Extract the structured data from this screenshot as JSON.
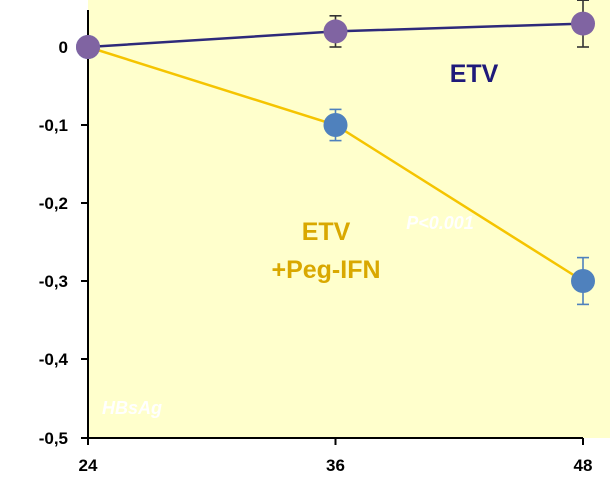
{
  "chart_data": {
    "type": "line",
    "x": [
      24,
      36,
      48
    ],
    "x_tick_labels": [
      "24",
      "36",
      "48"
    ],
    "y_ticks": [
      0,
      -0.1,
      -0.2,
      -0.3,
      -0.4,
      -0.5
    ],
    "y_tick_labels": [
      "0",
      "-0,1",
      "-0,2",
      "-0,3",
      "-0,4",
      "-0,5"
    ],
    "xlim": [
      24,
      48
    ],
    "ylim": [
      -0.5,
      0.05
    ],
    "grid": false,
    "background_color": "#FFFFCC",
    "series": [
      {
        "name": "ETV",
        "values": [
          0,
          0.02,
          0.03
        ],
        "error": [
          0,
          0.02,
          0.03
        ],
        "line_color": "#2E2A7A",
        "marker_color": "#8064A2"
      },
      {
        "name": "ETV +Peg-IFN",
        "values": [
          0,
          -0.1,
          -0.3
        ],
        "error": [
          0,
          0.02,
          0.03
        ],
        "line_color": "#F5C400",
        "marker_color": "#4F81BD"
      }
    ],
    "annotations": {
      "etv_label": "ETV",
      "peg_label_line1": "ETV",
      "peg_label_line2": "+Peg-IFN",
      "p_value": "P<0.001",
      "marker_name": "HBsAg"
    },
    "annotation_colors": {
      "etv": "#1F1A7A",
      "peg": "#D9A800"
    }
  }
}
